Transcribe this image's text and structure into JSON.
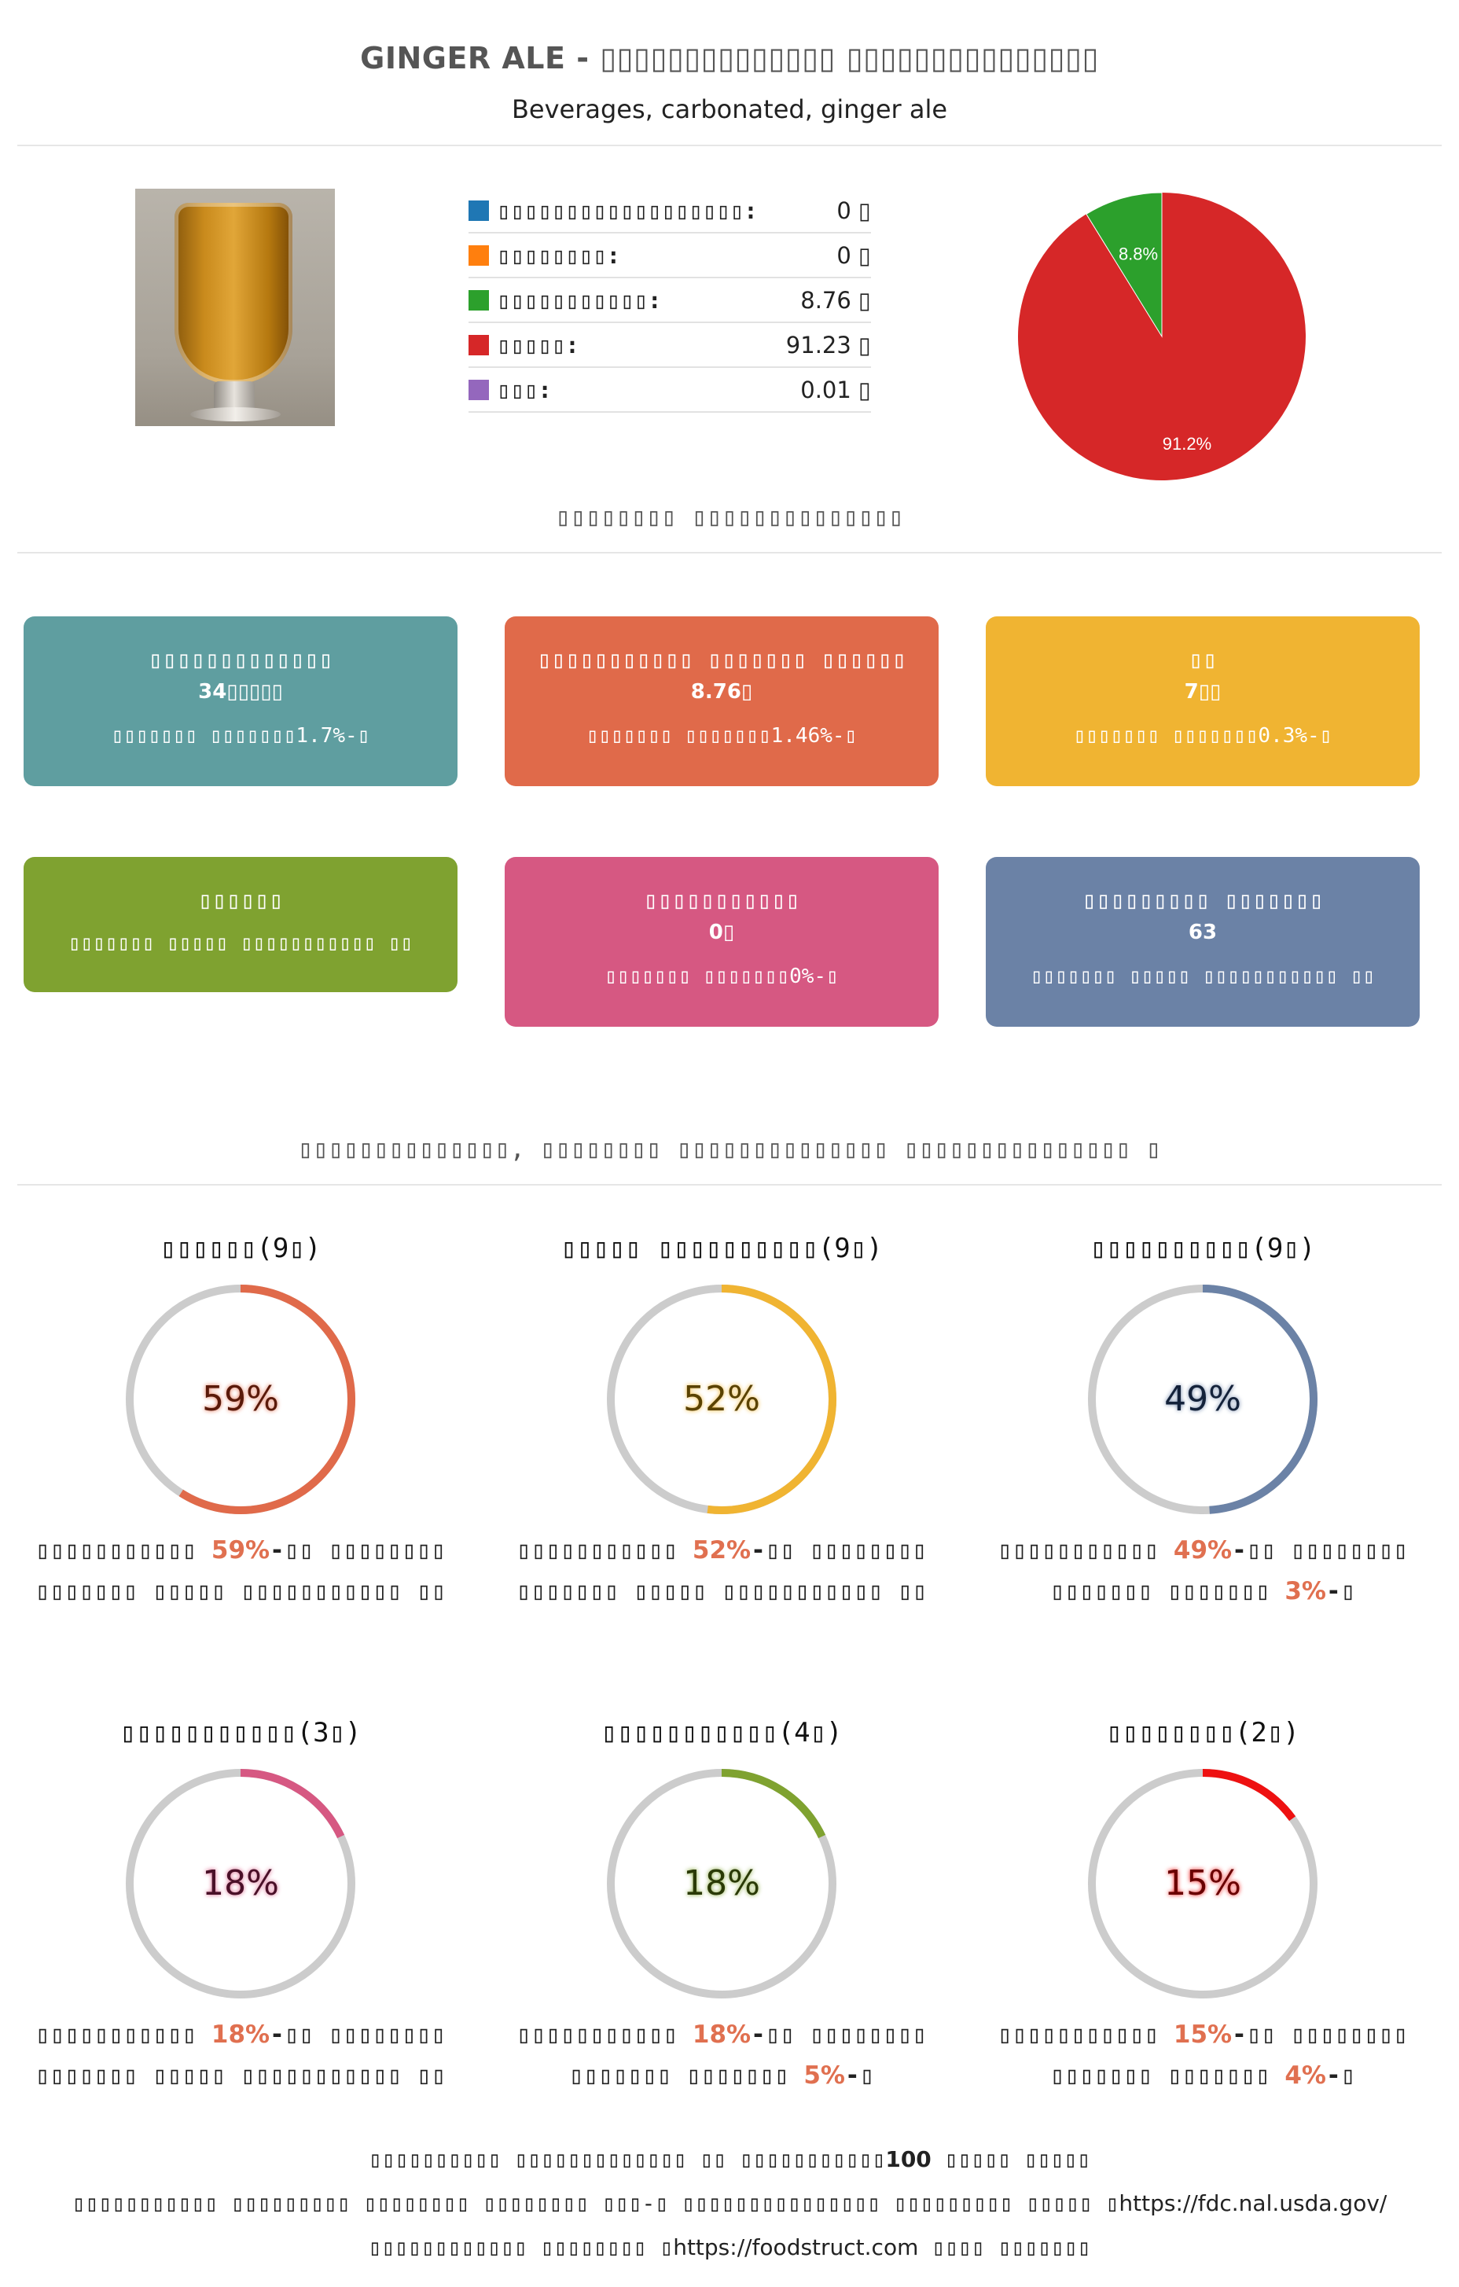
{
  "header": {
    "title": "GINGER ALE - ▯▯▯▯▯▯▯▯▯▯▯▯▯▯ ▯▯▯▯▯▯▯▯▯▯▯▯▯▯▯",
    "subtitle": "Beverages, carbonated, ginger ale"
  },
  "photo": {
    "name": "ginger-ale-glass-photo"
  },
  "legend": [
    {
      "label": "▯▯▯▯▯▯▯▯▯▯▯▯▯▯▯▯▯▯:",
      "value": "0 ▯",
      "color": "#1f77b4"
    },
    {
      "label": "▯▯▯▯▯▯▯▯:",
      "value": "0 ▯",
      "color": "#ff7f0e"
    },
    {
      "label": "▯▯▯▯▯▯▯▯▯▯▯:",
      "value": "8.76 ▯",
      "color": "#2ca02c"
    },
    {
      "label": "▯▯▯▯▯:",
      "value": "91.23 ▯",
      "color": "#d62728"
    },
    {
      "label": "▯▯▯:",
      "value": "0.01 ▯",
      "color": "#9467bd"
    }
  ],
  "chart_data": {
    "type": "pie",
    "slices": [
      {
        "label": "▯▯▯▯▯",
        "value": 91.2,
        "color": "#d62728",
        "display": "91.2%"
      },
      {
        "label": "▯▯▯▯▯▯▯▯▯▯▯",
        "value": 8.8,
        "color": "#2ca02c",
        "display": "8.8%"
      }
    ]
  },
  "sections": {
    "nutrition_title": "▯▯▯▯▯▯▯▯ ▯▯▯▯▯▯▯▯▯▯▯▯▯▯",
    "ranking_title": "▯▯▯▯▯▯▯▯▯▯▯▯▯▯, ▯▯▯▯▯▯▯▯ ▯▯▯▯▯▯▯▯▯▯▯▯▯▯ ▯▯▯▯▯▯▯▯▯▯▯▯▯▯▯ ▯"
  },
  "cards": [
    {
      "title": "▯▯▯▯▯▯▯▯▯▯▯▯▯",
      "value": "34▯▯▯▯▯",
      "note": "▯▯▯▯▯▯▯ ▯▯▯▯▯▯▯1.7%-▯",
      "color": "#5f9ea0"
    },
    {
      "title": "▯▯▯▯▯▯▯▯▯▯▯ ▯▯▯▯▯▯▯ ▯▯▯▯▯▯",
      "value": "8.76▯",
      "note": "▯▯▯▯▯▯▯ ▯▯▯▯▯▯▯1.46%-▯",
      "color": "#e06a4a"
    },
    {
      "title": "▯▯",
      "value": "7▯▯",
      "note": "▯▯▯▯▯▯▯ ▯▯▯▯▯▯▯0.3%-▯",
      "color": "#f0b432"
    },
    {
      "title": "▯▯▯▯▯▯",
      "value": "",
      "note": "▯▯▯▯▯▯▯ ▯▯▯▯▯ ▯▯▯▯▯▯▯▯▯▯▯ ▯▯",
      "color": "#7fa230"
    },
    {
      "title": "▯▯▯▯▯▯▯▯▯▯▯",
      "value": "0▯",
      "note": "▯▯▯▯▯▯▯ ▯▯▯▯▯▯▯0%-▯",
      "color": "#d65882"
    },
    {
      "title": "▯▯▯▯▯▯▯▯▯ ▯▯▯▯▯▯▯",
      "value": "63",
      "note": "▯▯▯▯▯▯▯ ▯▯▯▯▯ ▯▯▯▯▯▯▯▯▯▯▯ ▯▯",
      "color": "#6b82a6"
    }
  ],
  "rings": [
    {
      "title": "▯▯▯▯▯▯(9▯)",
      "percent": 59,
      "label": "59%",
      "color": "#e06a4a",
      "text_color": "#5a1a0a",
      "cap_a": "▯▯▯▯▯▯▯▯▯▯▯ ",
      "cap_hl": "59%",
      "cap_b": "-▯▯ ▯▯▯▯▯▯▯▯",
      "cap_line2": "▯▯▯▯▯▯▯ ▯▯▯▯▯ ▯▯▯▯▯▯▯▯▯▯▯ ▯▯",
      "cap_line2_hl": "",
      "cap_line2_end": ""
    },
    {
      "title": "▯▯▯▯▯ ▯▯▯▯▯▯▯▯▯▯(9▯)",
      "percent": 52,
      "label": "52%",
      "color": "#f0b432",
      "text_color": "#5a4200",
      "cap_a": "▯▯▯▯▯▯▯▯▯▯▯ ",
      "cap_hl": "52%",
      "cap_b": "-▯▯ ▯▯▯▯▯▯▯▯",
      "cap_line2": "▯▯▯▯▯▯▯ ▯▯▯▯▯ ▯▯▯▯▯▯▯▯▯▯▯ ▯▯",
      "cap_line2_hl": "",
      "cap_line2_end": ""
    },
    {
      "title": "▯▯▯▯▯▯▯▯▯▯(9▯)",
      "percent": 49,
      "label": "49%",
      "color": "#6b82a6",
      "text_color": "#14223a",
      "cap_a": "▯▯▯▯▯▯▯▯▯▯▯ ",
      "cap_hl": "49%",
      "cap_b": "-▯▯ ▯▯▯▯▯▯▯▯",
      "cap_line2": "▯▯▯▯▯▯▯ ▯▯▯▯▯▯▯ ",
      "cap_line2_hl": "3%",
      "cap_line2_end": "-▯"
    },
    {
      "title": "▯▯▯▯▯▯▯▯▯▯▯(3▯)",
      "percent": 18,
      "label": "18%",
      "color": "#d65882",
      "text_color": "#4a1028",
      "cap_a": "▯▯▯▯▯▯▯▯▯▯▯ ",
      "cap_hl": "18%",
      "cap_b": "-▯▯ ▯▯▯▯▯▯▯▯",
      "cap_line2": "▯▯▯▯▯▯▯ ▯▯▯▯▯ ▯▯▯▯▯▯▯▯▯▯▯ ▯▯",
      "cap_line2_hl": "",
      "cap_line2_end": ""
    },
    {
      "title": "▯▯▯▯▯▯▯▯▯▯▯(4▯)",
      "percent": 18,
      "label": "18%",
      "color": "#7fa230",
      "text_color": "#2a3a06",
      "cap_a": "▯▯▯▯▯▯▯▯▯▯▯ ",
      "cap_hl": "18%",
      "cap_b": "-▯▯ ▯▯▯▯▯▯▯▯",
      "cap_line2": "▯▯▯▯▯▯▯ ▯▯▯▯▯▯▯ ",
      "cap_line2_hl": "5%",
      "cap_line2_end": "-▯"
    },
    {
      "title": "▯▯▯▯▯▯▯▯(2▯)",
      "percent": 15,
      "label": "15%",
      "color": "#ee1111",
      "text_color": "#6a0000",
      "cap_a": "▯▯▯▯▯▯▯▯▯▯▯ ",
      "cap_hl": "15%",
      "cap_b": "-▯▯ ▯▯▯▯▯▯▯▯",
      "cap_line2": "▯▯▯▯▯▯▯ ▯▯▯▯▯▯▯ ",
      "cap_line2_hl": "4%",
      "cap_line2_end": "-▯"
    }
  ],
  "footer": {
    "line1_a": "▯▯▯▯▯▯▯▯▯▯ ▯▯▯▯▯▯▯▯▯▯▯▯▯ ▯▯ ▯▯▯▯▯▯▯▯▯▯▯",
    "line1_b": "100",
    "line1_c": " ▯▯▯▯▯ ▯▯▯▯▯",
    "line2_a": "▯▯▯▯▯▯▯▯▯▯▯ ▯▯▯▯▯▯▯▯▯ ▯▯▯▯▯▯▯▯ ▯▯▯▯▯▯▯▯ ▯▯▯-▯ ▯▯▯▯▯▯▯▯▯▯▯▯▯▯▯ ▯▯▯▯▯▯▯▯▯ ▯▯▯▯▯ ▯",
    "line2_url": "https://fdc.nal.usda.gov/",
    "line3_a": "▯▯▯▯▯▯▯▯▯▯▯▯ ▯▯▯▯▯▯▯▯ ▯",
    "line3_url": "https://foodstruct.com",
    "line3_c": " ▯▯▯▯ ▯▯▯▯▯▯▯"
  }
}
